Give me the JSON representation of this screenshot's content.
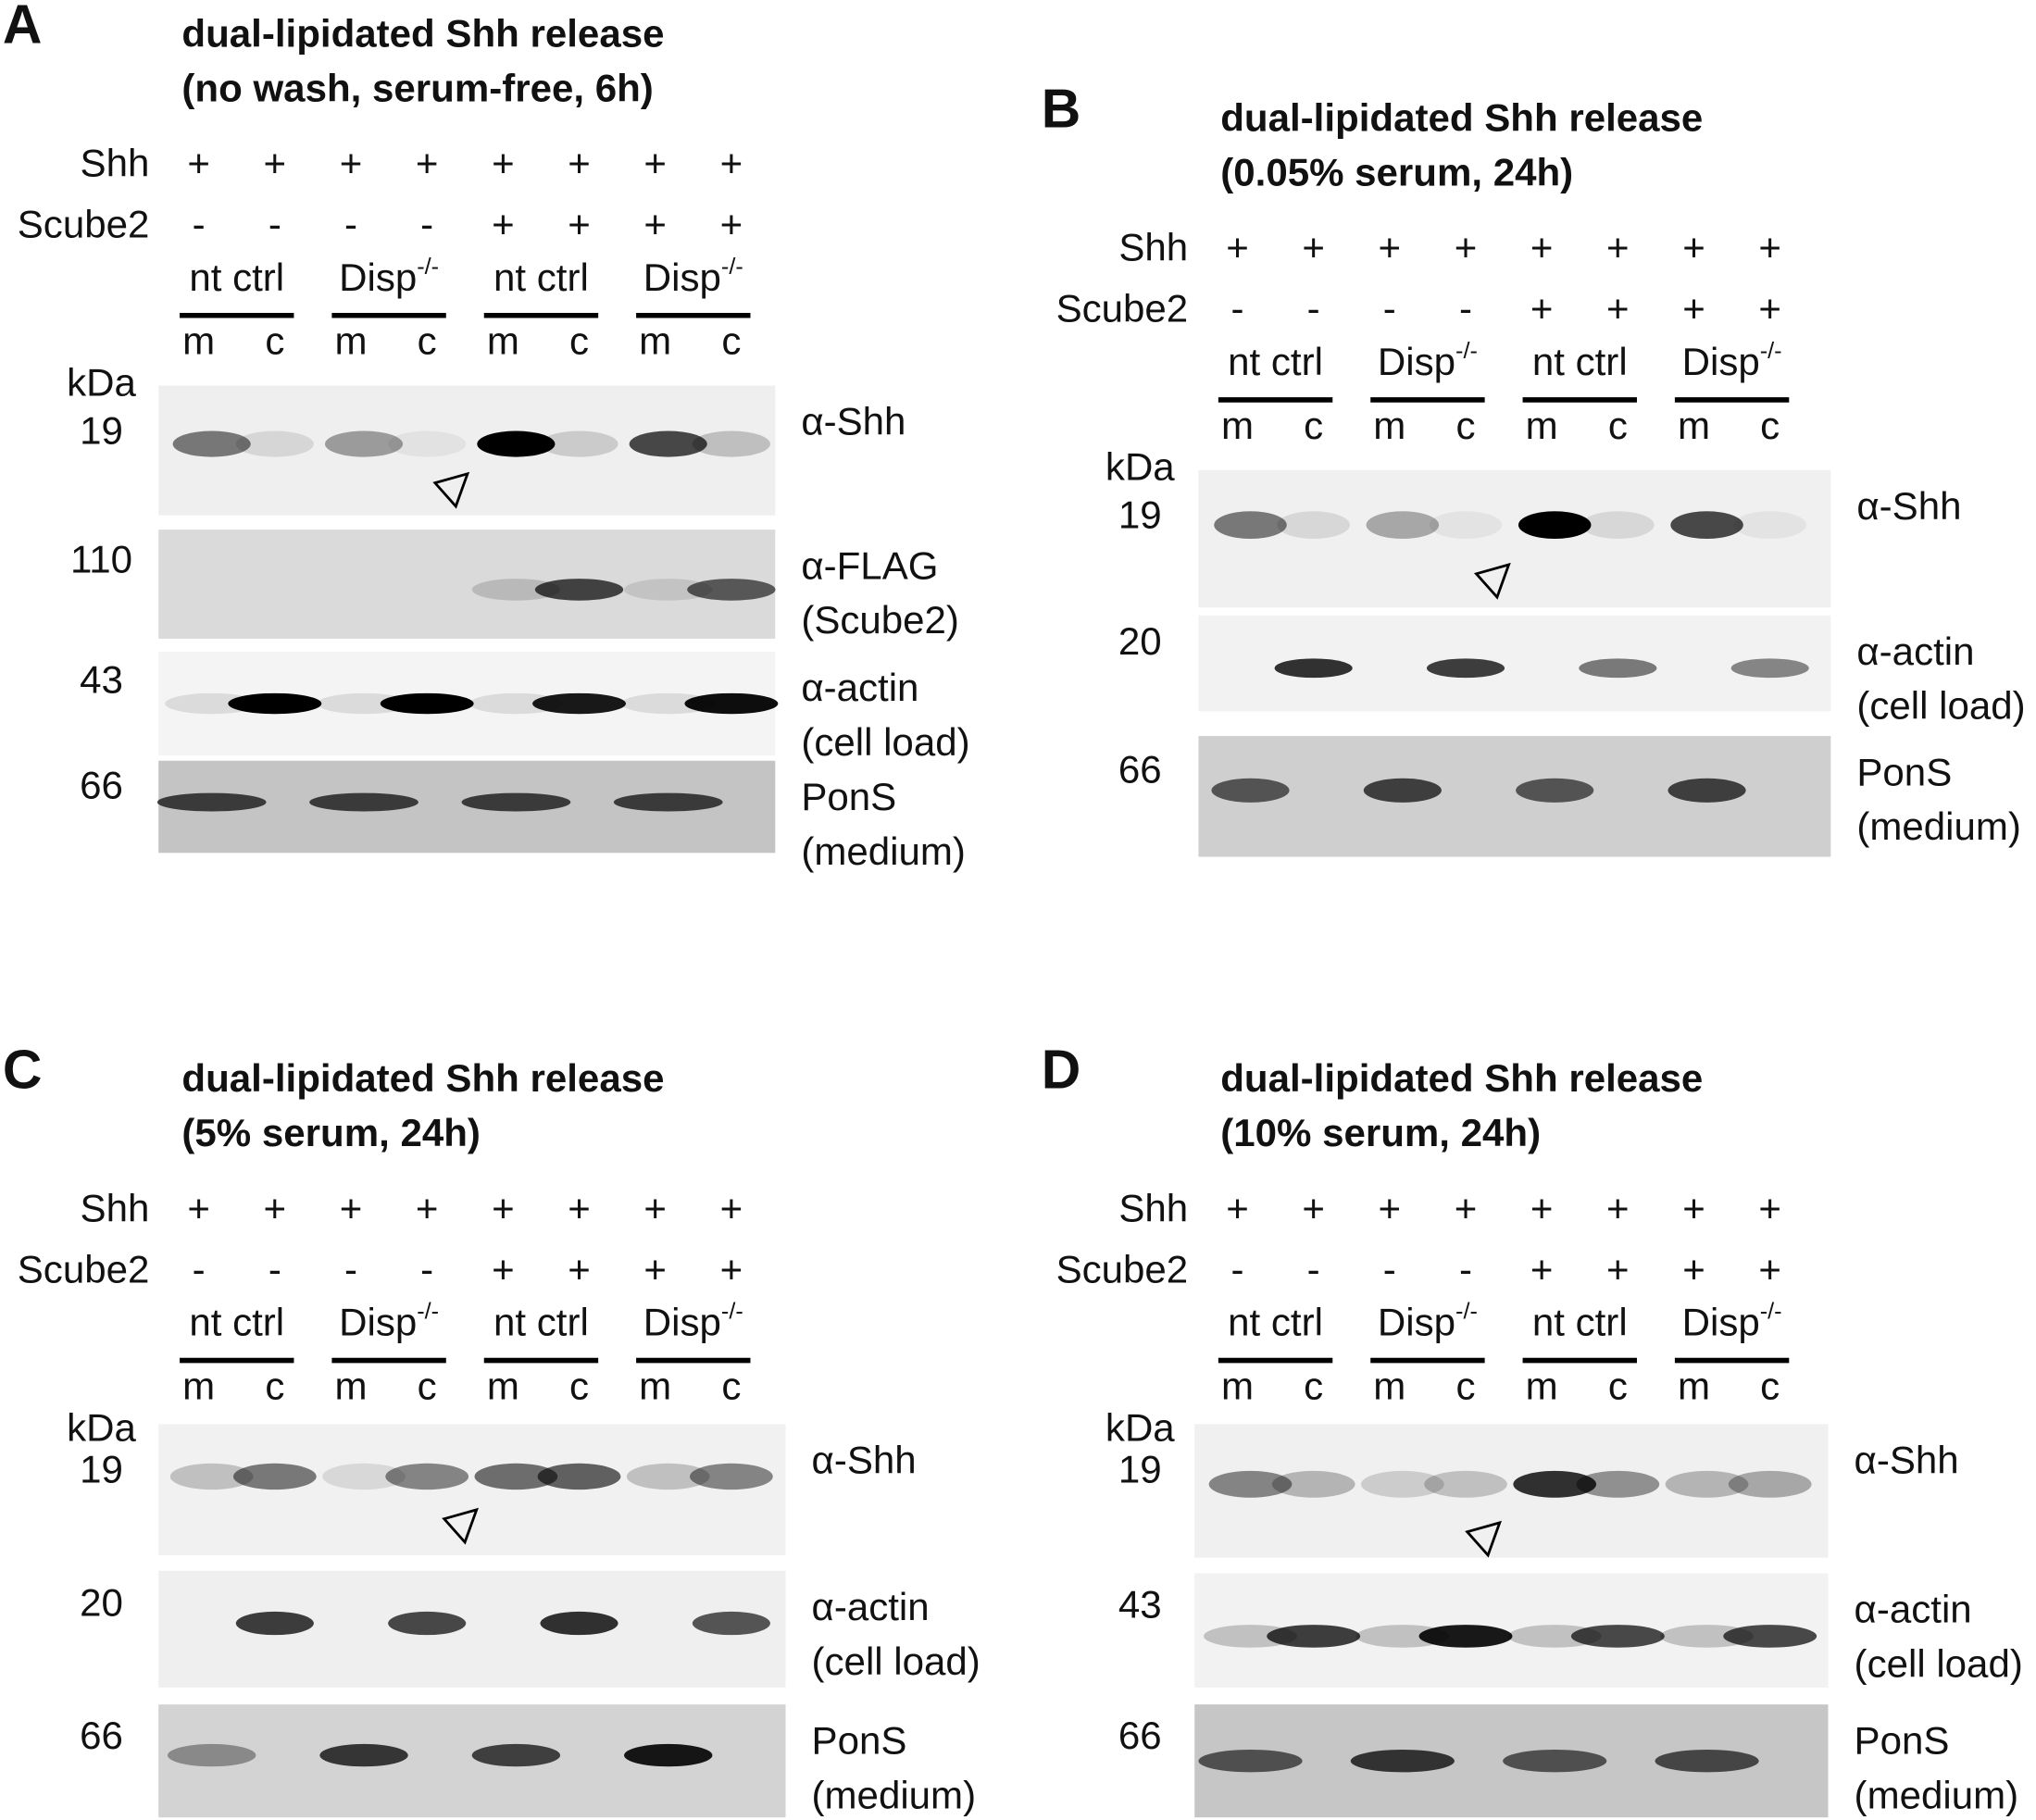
{
  "panels": [
    {
      "letter": "A",
      "title": [
        "dual-lipidated Shh release",
        "(no wash, serum-free, 6h)"
      ],
      "rows": [
        {
          "label": "Shh",
          "signs": [
            "+",
            "+",
            "+",
            "+",
            "+",
            "+",
            "+",
            "+"
          ]
        },
        {
          "label": "Scube2",
          "signs": [
            "-",
            "-",
            "-",
            "-",
            "+",
            "+",
            "+",
            "+"
          ]
        }
      ],
      "groups": [
        {
          "text": "nt ctrl"
        },
        {
          "text": "Disp",
          "sup": "-/-"
        },
        {
          "text": "nt ctrl"
        },
        {
          "text": "Disp",
          "sup": "-/-"
        }
      ],
      "lanes": [
        "m",
        "c",
        "m",
        "c",
        "m",
        "c",
        "m",
        "c"
      ],
      "kda_label": "kDa",
      "blots": [
        {
          "kda": "19",
          "label": [
            "α-Shh"
          ]
        },
        {
          "kda": "110",
          "label": [
            "α-FLAG",
            "(Scube2)"
          ]
        },
        {
          "kda": "43",
          "label": [
            "α-actin",
            "(cell load)"
          ]
        },
        {
          "kda": "66",
          "label": [
            "PonS",
            "(medium)"
          ]
        }
      ]
    },
    {
      "letter": "B",
      "title": [
        "dual-lipidated Shh release",
        "(0.05% serum, 24h)"
      ],
      "rows": [
        {
          "label": "Shh",
          "signs": [
            "+",
            "+",
            "+",
            "+",
            "+",
            "+",
            "+",
            "+"
          ]
        },
        {
          "label": "Scube2",
          "signs": [
            "-",
            "-",
            "-",
            "-",
            "+",
            "+",
            "+",
            "+"
          ]
        }
      ],
      "groups": [
        {
          "text": "nt ctrl"
        },
        {
          "text": "Disp",
          "sup": "-/-"
        },
        {
          "text": "nt ctrl"
        },
        {
          "text": "Disp",
          "sup": "-/-"
        }
      ],
      "lanes": [
        "m",
        "c",
        "m",
        "c",
        "m",
        "c",
        "m",
        "c"
      ],
      "kda_label": "kDa",
      "blots": [
        {
          "kda": "19",
          "label": [
            "α-Shh"
          ]
        },
        {
          "kda": "20",
          "label": [
            "α-actin",
            "(cell load)"
          ]
        },
        {
          "kda": "66",
          "label": [
            "PonS",
            "(medium)"
          ]
        }
      ]
    },
    {
      "letter": "C",
      "title": [
        "dual-lipidated Shh release",
        "(5% serum, 24h)"
      ],
      "rows": [
        {
          "label": "Shh",
          "signs": [
            "+",
            "+",
            "+",
            "+",
            "+",
            "+",
            "+",
            "+"
          ]
        },
        {
          "label": "Scube2",
          "signs": [
            "-",
            "-",
            "-",
            "-",
            "+",
            "+",
            "+",
            "+"
          ]
        }
      ],
      "groups": [
        {
          "text": "nt ctrl"
        },
        {
          "text": "Disp",
          "sup": "-/-"
        },
        {
          "text": "nt ctrl"
        },
        {
          "text": "Disp",
          "sup": "-/-"
        }
      ],
      "lanes": [
        "m",
        "c",
        "m",
        "c",
        "m",
        "c",
        "m",
        "c"
      ],
      "kda_label": "kDa",
      "blots": [
        {
          "kda": "19",
          "label": [
            "α-Shh"
          ]
        },
        {
          "kda": "20",
          "label": [
            "α-actin",
            "(cell load)"
          ]
        },
        {
          "kda": "66",
          "label": [
            "PonS",
            "(medium)"
          ]
        }
      ]
    },
    {
      "letter": "D",
      "title": [
        "dual-lipidated Shh release",
        "(10% serum, 24h)"
      ],
      "rows": [
        {
          "label": "Shh",
          "signs": [
            "+",
            "+",
            "+",
            "+",
            "+",
            "+",
            "+",
            "+"
          ]
        },
        {
          "label": "Scube2",
          "signs": [
            "-",
            "-",
            "-",
            "-",
            "+",
            "+",
            "+",
            "+"
          ]
        }
      ],
      "groups": [
        {
          "text": "nt ctrl"
        },
        {
          "text": "Disp",
          "sup": "-/-"
        },
        {
          "text": "nt ctrl"
        },
        {
          "text": "Disp",
          "sup": "-/-"
        }
      ],
      "lanes": [
        "m",
        "c",
        "m",
        "c",
        "m",
        "c",
        "m",
        "c"
      ],
      "kda_label": "kDa",
      "blots": [
        {
          "kda": "19",
          "label": [
            "α-Shh"
          ]
        },
        {
          "kda": "43",
          "label": [
            "α-actin",
            "(cell load)"
          ]
        },
        {
          "kda": "66",
          "label": [
            "PonS",
            "(medium)"
          ]
        }
      ]
    }
  ]
}
